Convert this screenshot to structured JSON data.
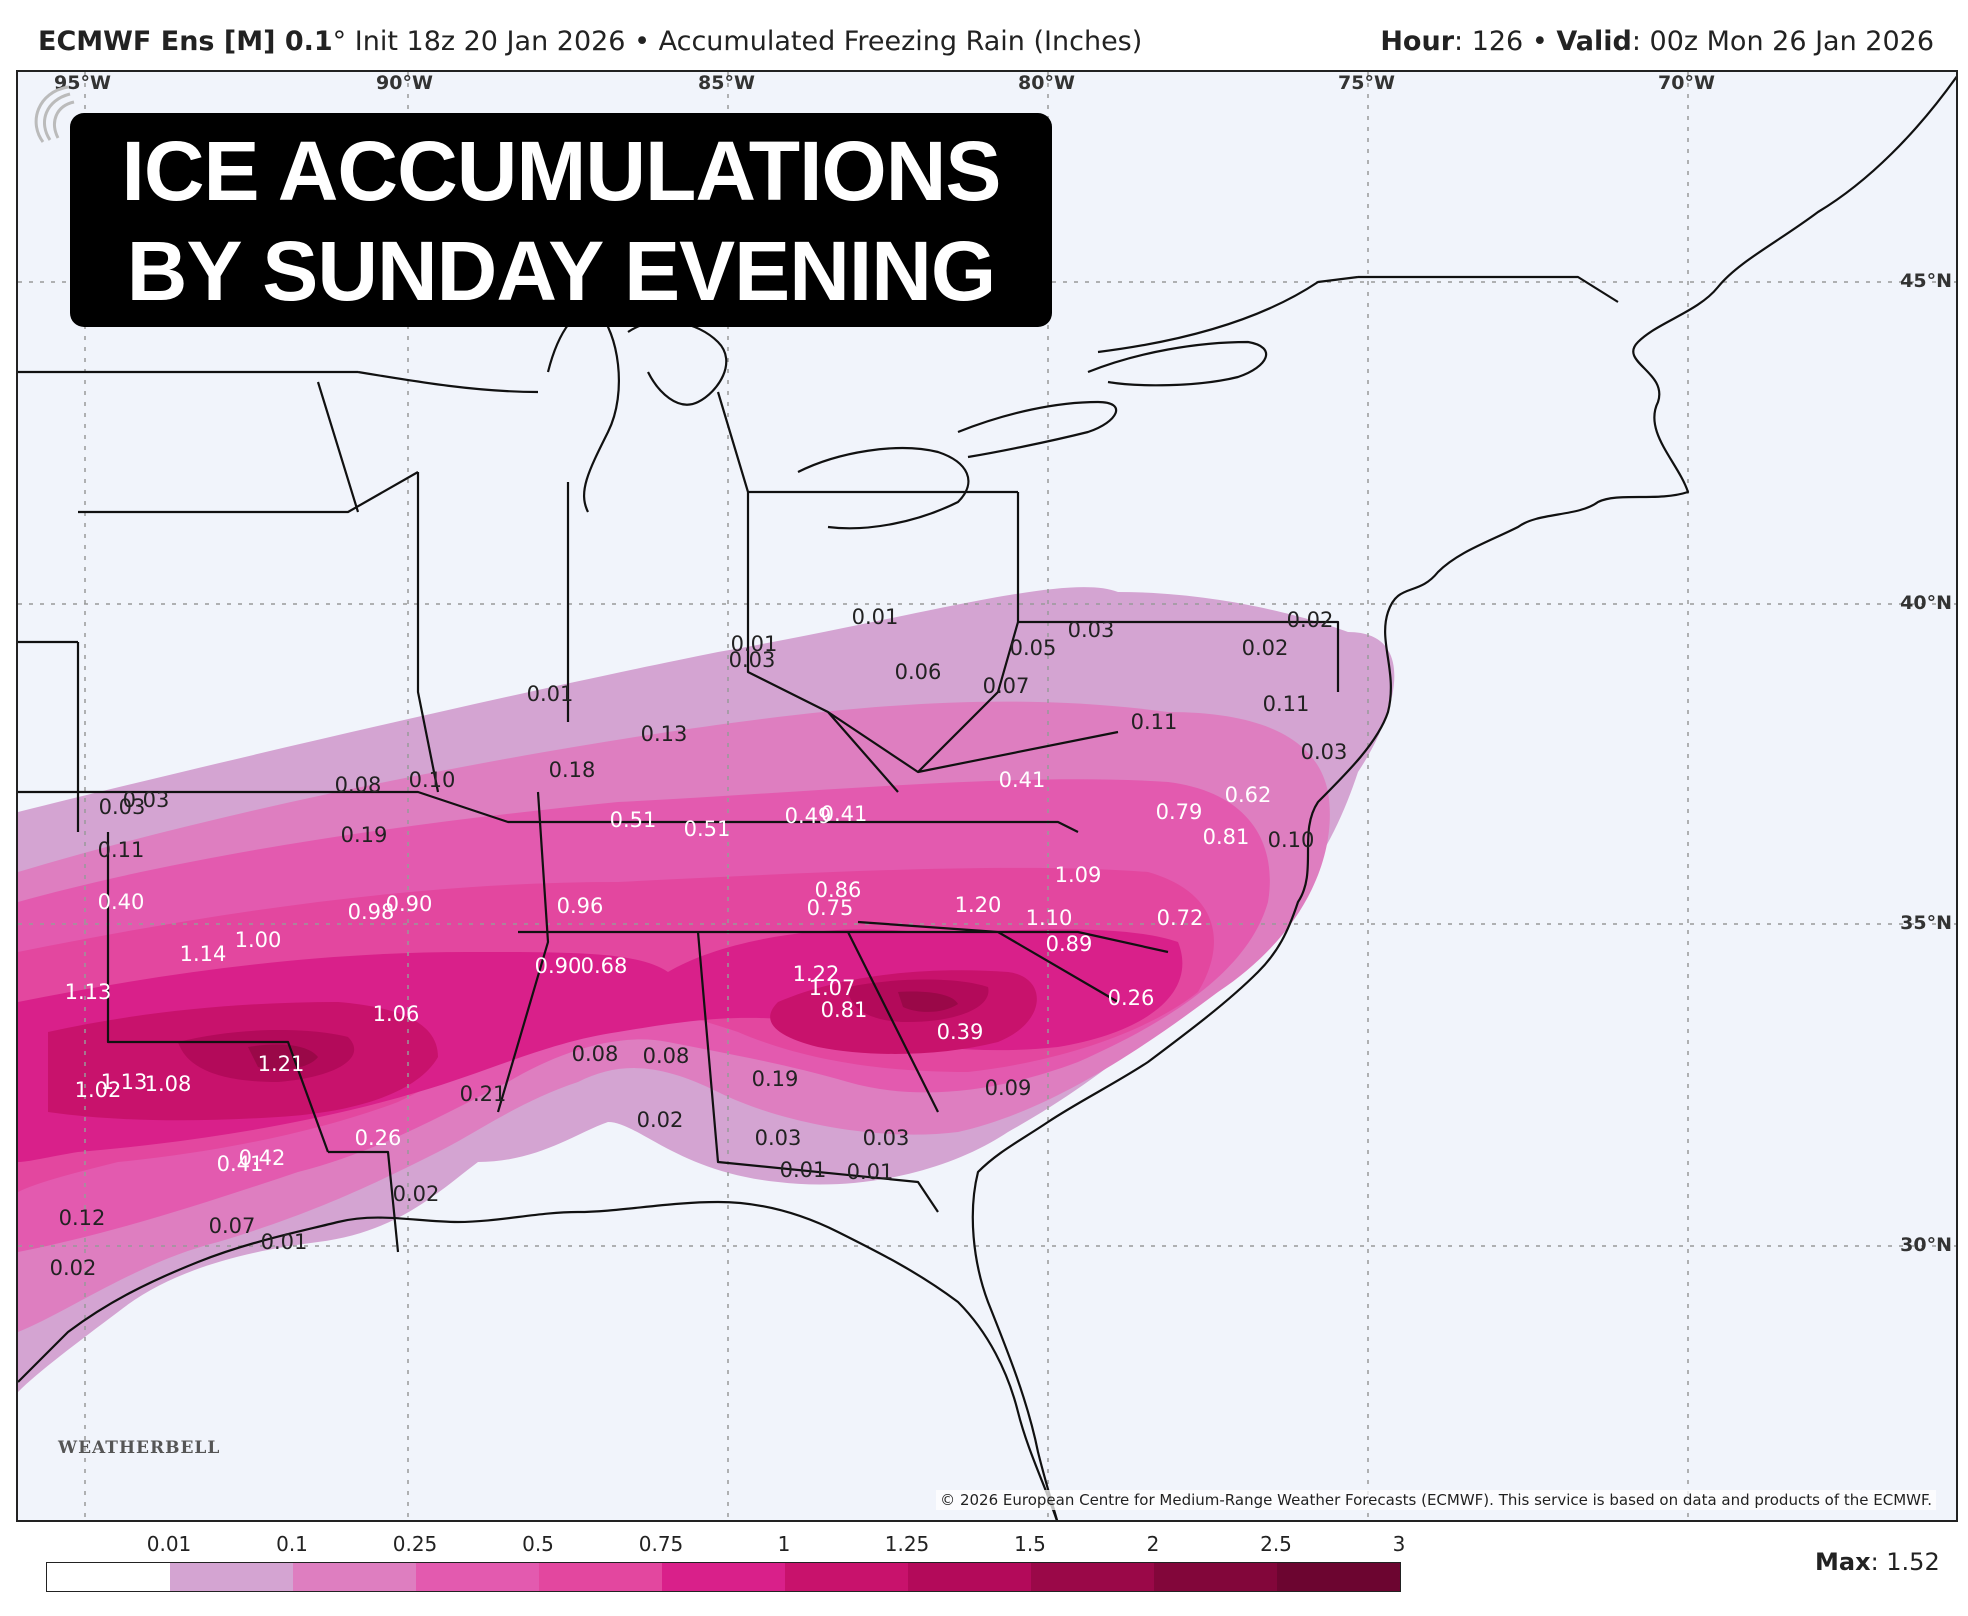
{
  "header": {
    "model": "ECMWF Ens [M] 0.1",
    "degree": "°",
    "init": "Init 18z 20 Jan 2026",
    "bullet": "•",
    "field": "Accumulated Freezing Rain (Inches)",
    "hour_label": "Hour",
    "hour_value": ": 126",
    "valid_label": "Valid",
    "valid_value": ": 00z Mon 26 Jan 2026"
  },
  "overlay": {
    "line1": "ICE ACCUMULATIONS",
    "line2": "BY SUNDAY EVENING"
  },
  "longitude_labels": [
    "95°W",
    "90°W",
    "85°W",
    "80°W",
    "75°W",
    "70°W"
  ],
  "latitude_labels": [
    "45°N",
    "40°N",
    "35°N",
    "30°N"
  ],
  "point_values": [
    "0.01",
    "0.01",
    "0.03",
    "0.05",
    "0.03",
    "0.06",
    "0.07",
    "0.02",
    "0.02",
    "0.11",
    "0.01",
    "0.13",
    "0.11",
    "0.03",
    "0.18",
    "0.08",
    "0.10",
    "0.03",
    "0.03",
    "0.41",
    "0.62",
    "0.11",
    "0.19",
    "0.51",
    "0.51",
    "0.49",
    "0.41",
    "0.79",
    "0.81",
    "0.10",
    "1.09",
    "0.40",
    "0.98",
    "0.90",
    "0.96",
    "0.86",
    "0.75",
    "1.20",
    "1.10",
    "0.72",
    "1.14",
    "1.00",
    "0.89",
    "0.90",
    "0.68",
    "1.22",
    "1.07",
    "1.13",
    "1.06",
    "0.81",
    "0.26",
    "0.39",
    "1.21",
    "0.08",
    "0.08",
    "1.02",
    "1.13",
    "1.08",
    "0.21",
    "0.19",
    "0.09",
    "0.26",
    "0.02",
    "0.03",
    "0.03",
    "0.41",
    "0.42",
    "0.01",
    "0.01",
    "0.02",
    "0.12",
    "0.07",
    "0.01",
    "0.02"
  ],
  "copyright": "© 2026 European Centre for Medium-Range Weather Forecasts (ECMWF). This service is based on data and products of the ECMWF.",
  "logo": {
    "text": "WEATHERBELL"
  },
  "legend": {
    "ticks": [
      "0.01",
      "0.1",
      "0.25",
      "0.5",
      "0.75",
      "1",
      "1.25",
      "1.5",
      "2",
      "2.5",
      "3"
    ],
    "colors": [
      "#ffffff",
      "#d4a4d2",
      "#de7ec0",
      "#e35aaf",
      "#e3479f",
      "#d9208a",
      "#c8126c",
      "#b30a5a",
      "#9a0848",
      "#82063a",
      "#6c0530"
    ]
  },
  "max": {
    "label": "Max",
    "value": ": 1.52"
  }
}
